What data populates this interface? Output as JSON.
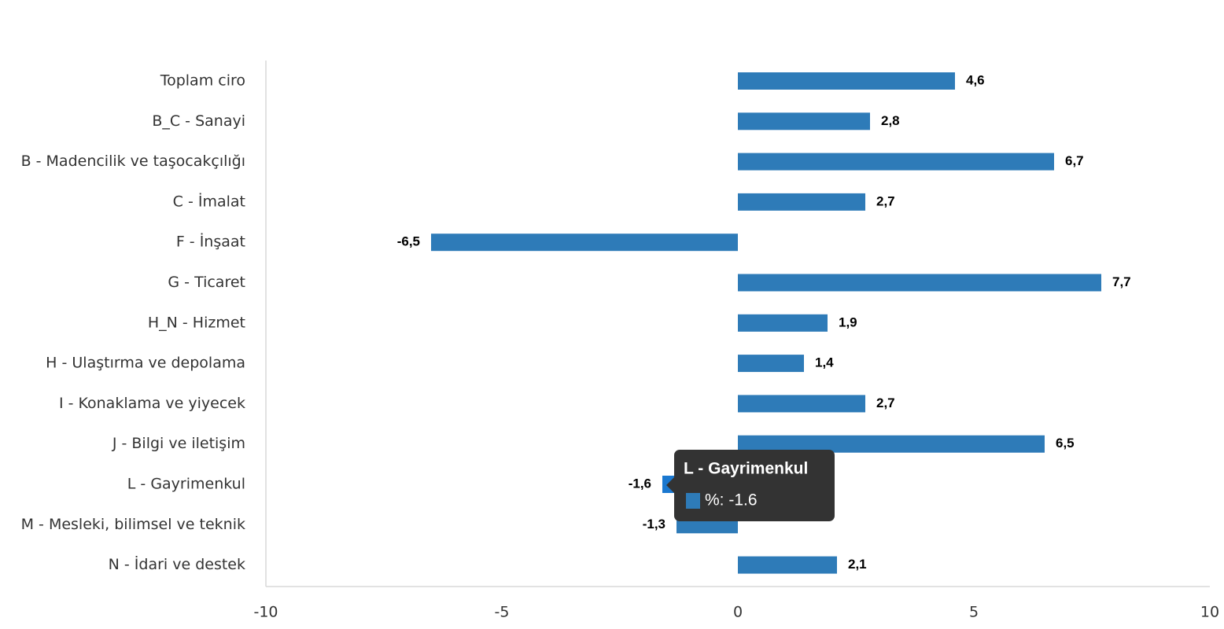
{
  "chart_data": {
    "type": "bar",
    "orientation": "horizontal",
    "categories": [
      "Toplam ciro",
      "B_C - Sanayi",
      "B - Madencilik ve taşocakçılığı",
      "C - İmalat",
      "F - İnşaat",
      "G - Ticaret",
      "H_N - Hizmet",
      "H - Ulaştırma ve depolama",
      "I - Konaklama ve yiyecek",
      "J - Bilgi ve iletişim",
      "L - Gayrimenkul",
      "M - Mesleki, bilimsel ve teknik",
      "N - İdari ve destek"
    ],
    "values": [
      4.6,
      2.8,
      6.7,
      2.7,
      -6.5,
      7.7,
      1.9,
      1.4,
      2.7,
      6.5,
      -1.6,
      -1.3,
      2.1
    ],
    "value_labels": [
      "4,6",
      "2,8",
      "6,7",
      "2,7",
      "-6,5",
      "7,7",
      "1,9",
      "1,4",
      "2,7",
      "6,5",
      "-1,6",
      "-1,3",
      "2,1"
    ],
    "color": "#2e7bb8",
    "highlight_color": "#1a78d0",
    "xlim": [
      -10,
      10
    ],
    "xticks": [
      -10,
      -5,
      0,
      5,
      10
    ],
    "tooltip": {
      "title": "L - Gayrimenkul",
      "text": "%: -1.6",
      "index": 10
    }
  }
}
